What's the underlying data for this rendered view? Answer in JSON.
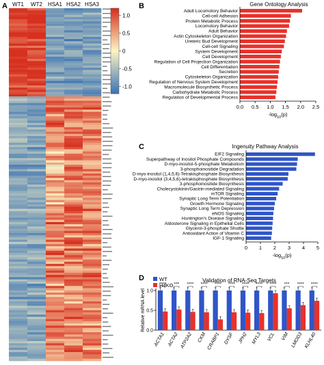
{
  "panels": {
    "a_letter": "A",
    "b_letter": "B",
    "c_letter": "C",
    "d_letter": "D"
  },
  "chart_data": [
    {
      "type": "heatmap",
      "panel": "A",
      "columns": [
        "WT1",
        "WT2",
        "HSA1",
        "HSA2",
        "HSA3"
      ],
      "colorbar_ticks": [
        "1.0",
        "0.5",
        "0",
        "-0.5",
        "-1.0"
      ],
      "clim": [
        -1.2,
        1.2
      ],
      "colors": {
        "high": "#d7301f",
        "mid": "#fdf5c4",
        "low": "#3d74b4"
      },
      "groups": [
        {
          "rows": 40,
          "pattern": "WT high, HSA low"
        },
        {
          "rows": 120,
          "pattern": "WT low, HSA high"
        }
      ]
    },
    {
      "type": "bar",
      "panel": "B",
      "orientation": "horizontal",
      "title": "Gene Ontology Analysis",
      "xlabel": "-log10(p)",
      "xlim": [
        0,
        2.5
      ],
      "xticks": [
        "0.0",
        "0.5",
        "1.0",
        "1.5",
        "2.0",
        "2.5"
      ],
      "bar_color": "#e8312a",
      "categories": [
        "Adult Locomotory Behavior",
        "Cell-cell Adhesion",
        "Protein Metabolic Process",
        "Locomotory Behavior",
        "Adult Behavior",
        "Actin Cytoskeleton Organization",
        "Ureteric Bud Development",
        "Cell-cell Signaling",
        "System Development",
        "Cell Development",
        "Regulation of Cell Projection Organization",
        "Cell Differentiation",
        "Secretion",
        "Cytoskeleton Organization",
        "Regulation of Nervous System Development",
        "Macromolecule Biosynthetic Process",
        "Carbohydrate Metabolic Process",
        "Regulation of Developmental Process"
      ],
      "values": [
        2.05,
        1.68,
        1.65,
        1.62,
        1.55,
        1.52,
        1.48,
        1.45,
        1.38,
        1.35,
        1.32,
        1.3,
        1.28,
        1.26,
        1.24,
        1.22,
        1.2,
        1.17
      ]
    },
    {
      "type": "bar",
      "panel": "C",
      "orientation": "horizontal",
      "title": "Ingenuity Pathway Analysis",
      "xlabel": "-log10(p)",
      "xlim": [
        0,
        5
      ],
      "xticks": [
        "0",
        "1",
        "2",
        "3",
        "4",
        "5"
      ],
      "bar_color": "#2f55c8",
      "categories": [
        "EIF2 Signaling",
        "Superpathway of Inositol Phosphate Compounds",
        "D-myo-inositol-5-phosphate Metabolism",
        "3-phosphoinositide Degradation",
        "D-myo-inositol (1,4,5,6)-Tetrakisphosphate Biosynthesis",
        "D-myo-inositol (3,4,5,6)-tetrakisphosphate Biosynthesis",
        "3-phosphoinositide Biosynthesis",
        "Cholecystokinin/Gastrin-mediated Signaling",
        "mTOR Signaling",
        "Synaptic Long Term Potentiation",
        "Growth Hormone Signaling",
        "Synaptic Long Term Depression",
        "eNOS Signaling",
        "Huntington's Disease Signaling",
        "Aldosterone Signaling in Epithelial Cells",
        "Glycerol-3-phosphate Shuttle",
        "Antioxidant Action of Vitamin C",
        "IGF-1 Signaling"
      ],
      "values": [
        4.8,
        3.6,
        3.55,
        3.5,
        2.95,
        2.9,
        2.55,
        2.3,
        2.2,
        2.1,
        2.0,
        1.95,
        1.9,
        1.88,
        1.85,
        1.82,
        1.8,
        1.75
      ]
    },
    {
      "type": "bar",
      "panel": "D",
      "title": "Validation of RNA-Seq Targets",
      "ylabel": "Relative mRNA level",
      "ylim": [
        0,
        1.0
      ],
      "yticks": [
        "0.0",
        "0.5",
        "1.0"
      ],
      "categories": [
        "ACTA1",
        "ACTA2",
        "ATP2A2",
        "CKM",
        "CRABP1",
        "DYSF",
        "JPH2",
        "MYL3",
        "VCL",
        "VIM",
        "LMOD3",
        "KLHL40"
      ],
      "significance": [
        "****",
        "***",
        "****",
        "****",
        "****",
        "****",
        "****",
        "****",
        "****",
        "***",
        "****",
        "****"
      ],
      "series": [
        {
          "name": "WT",
          "color": "#2f55c8",
          "values": [
            1.0,
            1.0,
            1.0,
            1.0,
            1.0,
            1.0,
            1.0,
            1.0,
            1.0,
            1.0,
            1.0,
            1.0
          ]
        },
        {
          "name": "HdKO",
          "color": "#e8312a",
          "values": [
            0.47,
            0.52,
            0.46,
            0.45,
            0.27,
            0.45,
            0.44,
            0.43,
            0.93,
            0.55,
            0.63,
            0.74
          ]
        }
      ]
    }
  ]
}
